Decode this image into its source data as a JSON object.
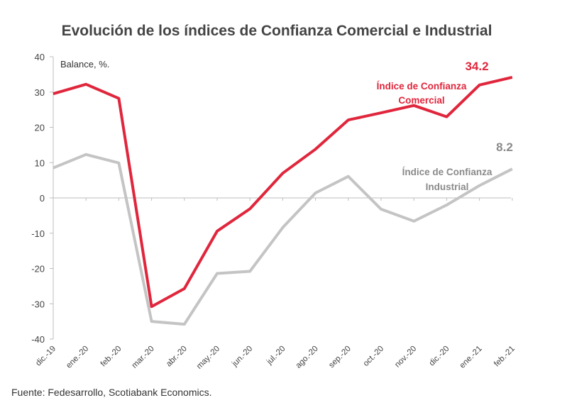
{
  "chart_data": {
    "type": "line",
    "title": "Evolución de los índices de Confianza Comercial e Industrial",
    "ylabel": "Balance, %.",
    "ylim": [
      -40,
      40
    ],
    "yticks": [
      "40",
      "30",
      "20",
      "10",
      "0",
      "-10",
      "-20",
      "-30",
      "-40"
    ],
    "categories": [
      "dic.-19",
      "ene.-20",
      "feb.-20",
      "mar.-20",
      "abr.-20",
      "may.-20",
      "jun.-20",
      "jul.-20",
      "ago.-20",
      "sep.-20",
      "oct.-20",
      "nov.-20",
      "dic.-20",
      "ene.-21",
      "feb.-21"
    ],
    "series": [
      {
        "name": "Índice de Confianza Comercial",
        "label_lines": [
          "Índice de Confianza",
          "Comercial"
        ],
        "color": "#e0263c",
        "values": [
          29.5,
          32.2,
          28.2,
          -30.8,
          -25.7,
          -9.4,
          -3.1,
          7.0,
          13.8,
          22.1,
          24.1,
          26.2,
          23.0,
          32.0,
          34.2
        ],
        "last_label": "34.2"
      },
      {
        "name": "Índice de Confianza Industrial",
        "label_lines": [
          "Índice de Confianza",
          "Industrial"
        ],
        "color": "#c4c4c4",
        "label_color": "#8a8a8a",
        "values": [
          8.5,
          12.3,
          9.9,
          -35.0,
          -35.8,
          -21.4,
          -20.8,
          -8.4,
          1.4,
          6.1,
          -3.2,
          -6.6,
          -2.0,
          3.5,
          8.2
        ],
        "last_label": "8.2"
      }
    ],
    "source": "Fuente: Fedesarrollo, Scotiabank Economics."
  }
}
